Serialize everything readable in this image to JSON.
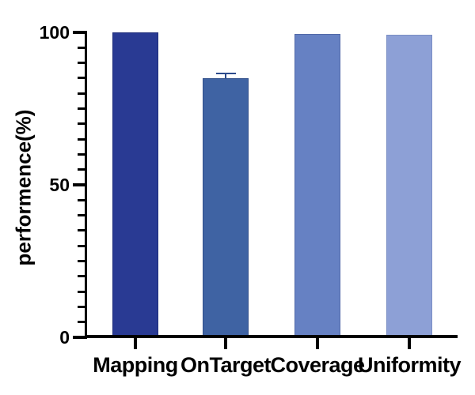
{
  "figure": {
    "background": "#ffffff"
  },
  "chart_data": {
    "type": "bar",
    "title": "",
    "xlabel": "",
    "ylabel": "performence(%)",
    "categories": [
      "Mapping",
      "OnTarget",
      "Coverage",
      "Uniformity"
    ],
    "values": [
      100,
      85,
      99.5,
      99.2
    ],
    "errors": [
      null,
      1.5,
      null,
      null
    ],
    "bar_fill_colors": [
      "#293A93",
      "#3F63A3",
      "#6681C3",
      "#8DA0D6"
    ],
    "bar_border_colors": [
      "#1F2D7A",
      "#32508B",
      "#5269A8",
      "#7B8EC4"
    ],
    "error_bar_color": "#2D4B8C",
    "axis_color": "#000000",
    "ylim": [
      0,
      100
    ],
    "ytick_major": [
      0,
      50,
      100
    ],
    "ytick_minor_step": 5,
    "grid": false,
    "legend_position": "none"
  }
}
